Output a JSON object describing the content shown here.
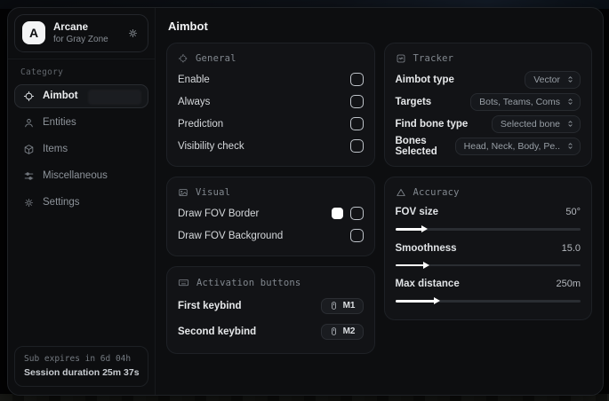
{
  "colors": {
    "fov_border_swatch": "#ffffff",
    "window_bg": "#0d0e10",
    "card_bg": "#121316"
  },
  "sidebar": {
    "logo_letter": "A",
    "app_name": "Arcane",
    "app_subtitle": "for Gray Zone",
    "category_label": "Category",
    "items": [
      {
        "label": "Aimbot",
        "active": true
      },
      {
        "label": "Entities",
        "active": false
      },
      {
        "label": "Items",
        "active": false
      },
      {
        "label": "Miscellaneous",
        "active": false
      },
      {
        "label": "Settings",
        "active": false
      }
    ],
    "footer": {
      "sub_expires": "Sub expires in 6d 04h",
      "session_duration": "Session duration 25m 37s"
    }
  },
  "main": {
    "title": "Aimbot",
    "general": {
      "title": "General",
      "rows": [
        {
          "label": "Enable",
          "checked": false
        },
        {
          "label": "Always",
          "checked": false
        },
        {
          "label": "Prediction",
          "checked": false
        },
        {
          "label": "Visibility check",
          "checked": false
        }
      ]
    },
    "visual": {
      "title": "Visual",
      "rows": [
        {
          "label": "Draw FOV Border",
          "checked": false,
          "swatch_color": "#ffffff"
        },
        {
          "label": "Draw FOV Background",
          "checked": false
        }
      ]
    },
    "activation": {
      "title": "Activation buttons",
      "rows": [
        {
          "label": "First keybind",
          "key": "M1"
        },
        {
          "label": "Second keybind",
          "key": "M2"
        }
      ]
    },
    "tracker": {
      "title": "Tracker",
      "rows": [
        {
          "label": "Aimbot type",
          "value": "Vector"
        },
        {
          "label": "Targets",
          "value": "Bots, Teams, Coms"
        },
        {
          "label": "Find bone type",
          "value": "Selected bone"
        },
        {
          "label": "Bones Selected",
          "value": "Head, Neck, Body, Pe.."
        }
      ]
    },
    "accuracy": {
      "title": "Accuracy",
      "rows": [
        {
          "label": "FOV size",
          "value": "50°",
          "fill": "15%"
        },
        {
          "label": "Smoothness",
          "value": "15.0",
          "fill": "16%"
        },
        {
          "label": "Max distance",
          "value": "250m",
          "fill": "22%"
        }
      ]
    }
  }
}
